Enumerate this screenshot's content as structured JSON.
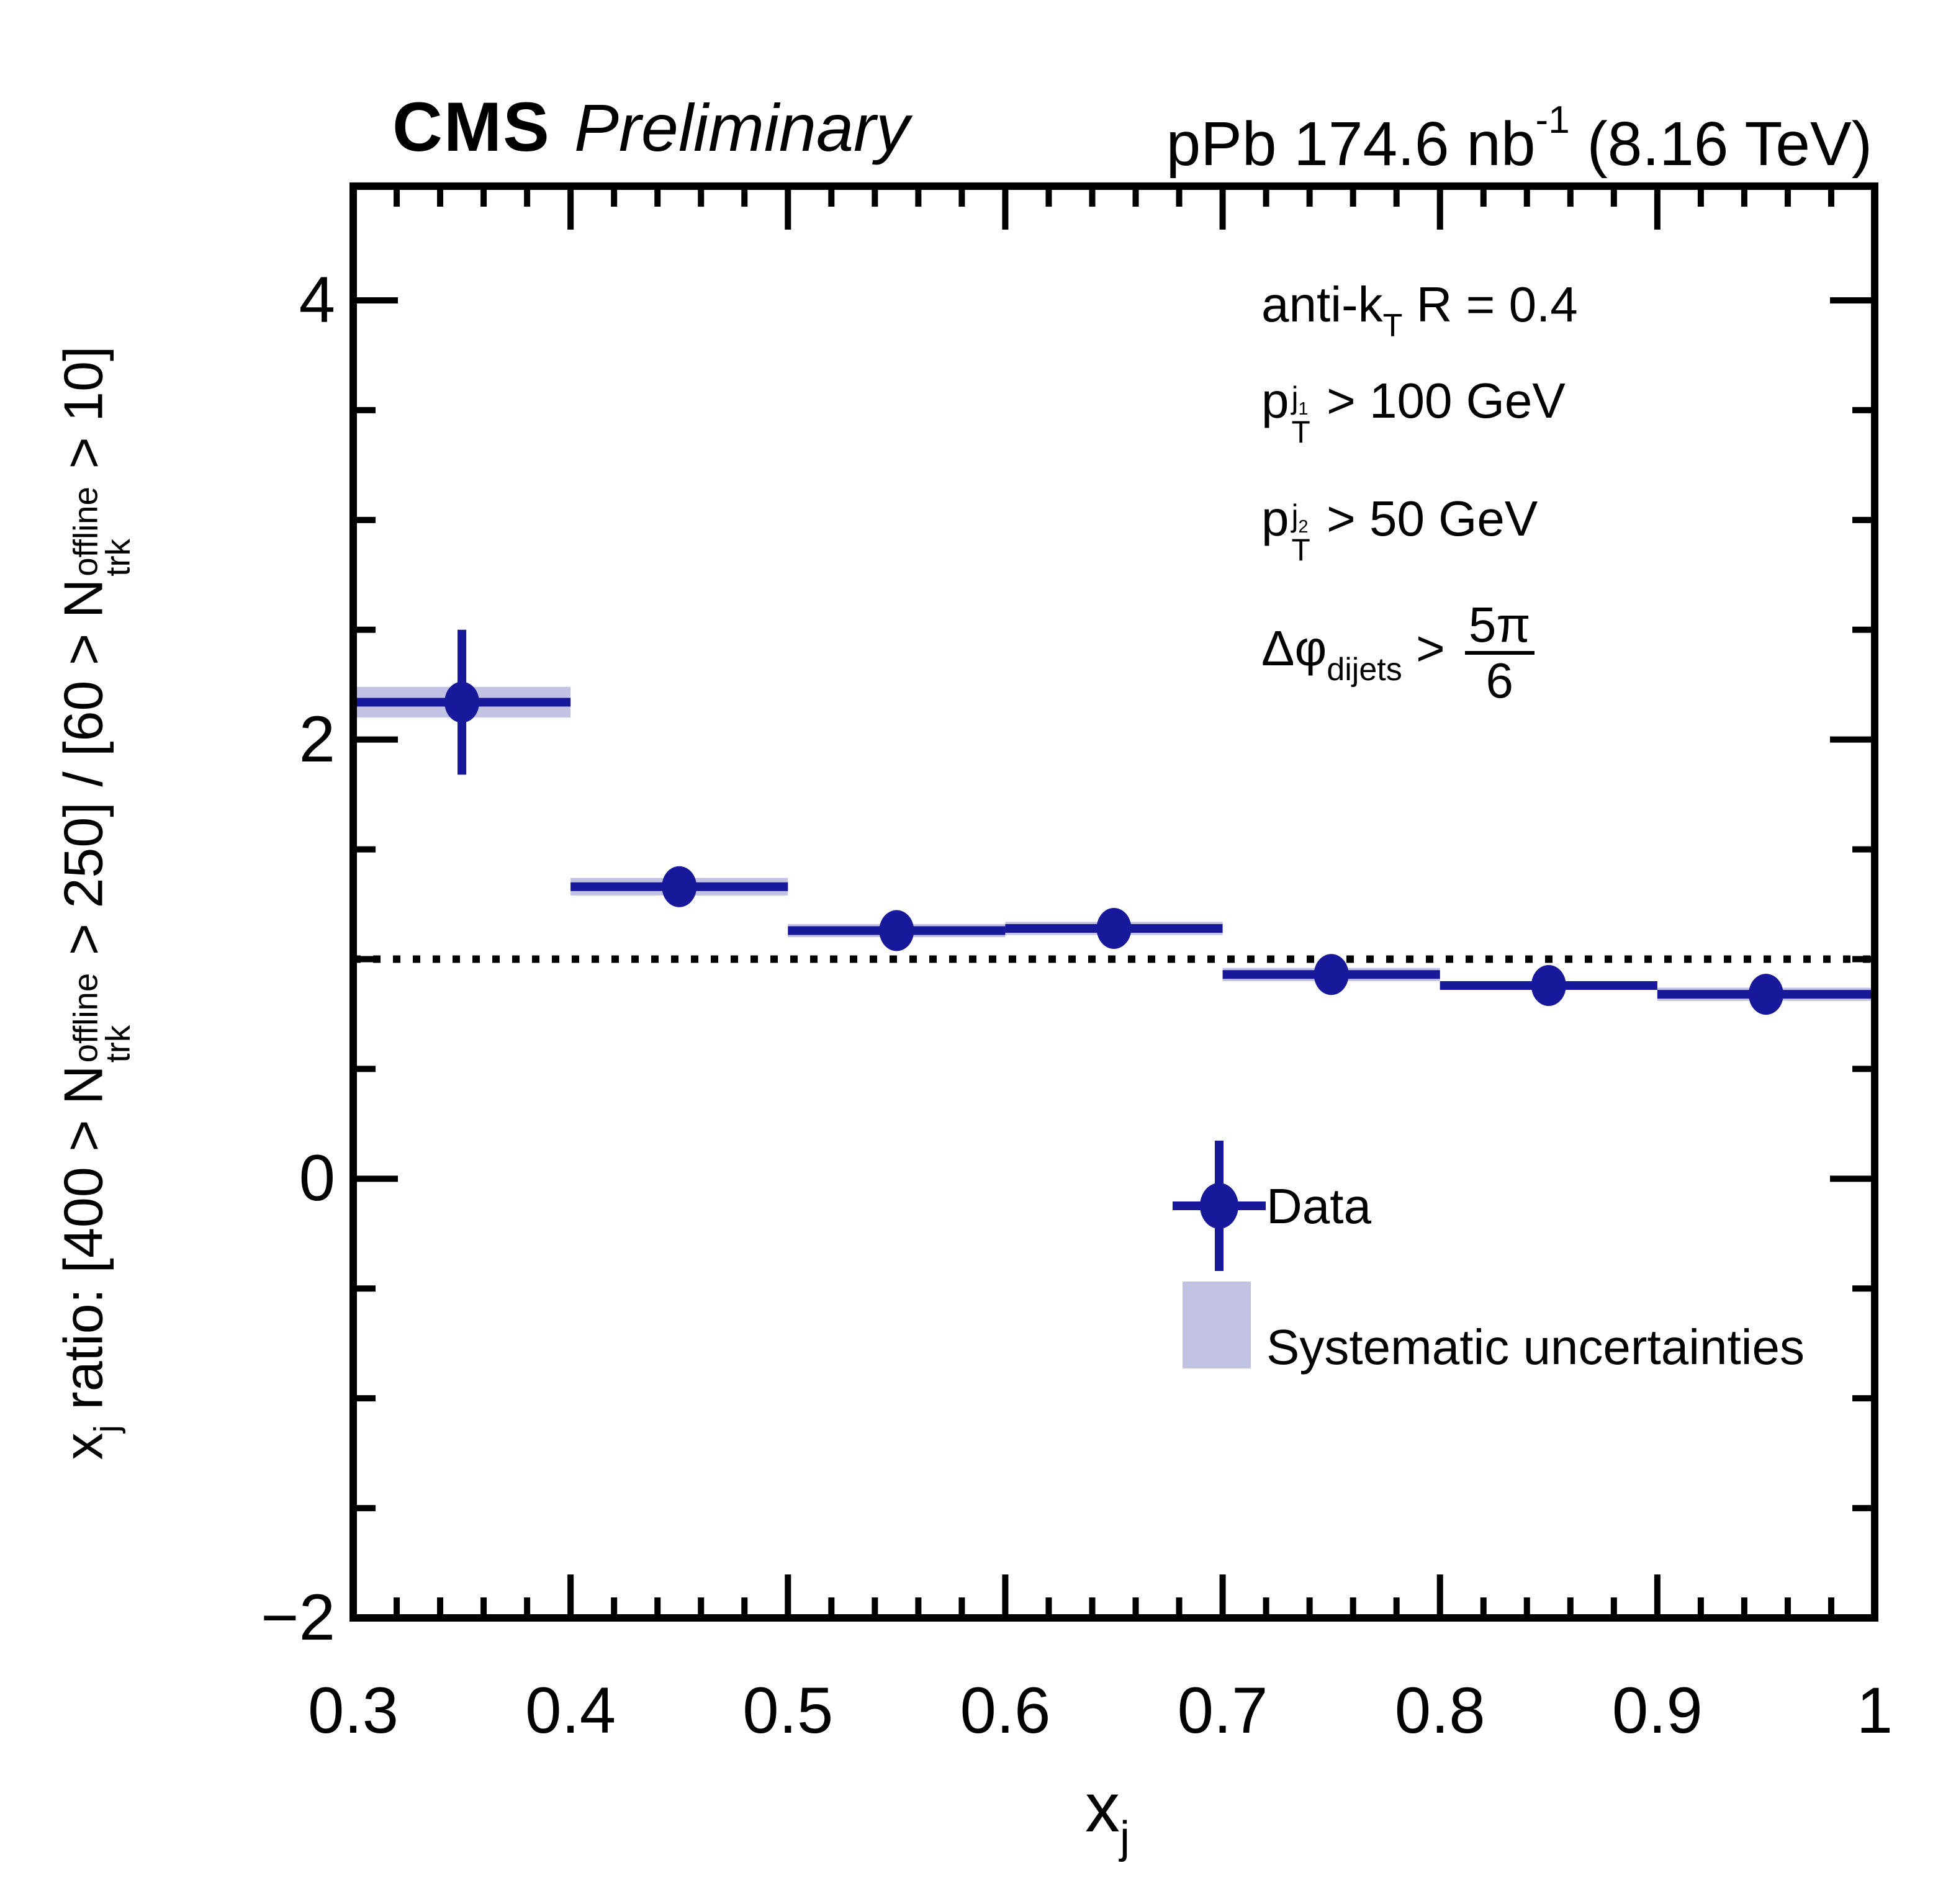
{
  "header": {
    "experiment": "CMS",
    "status": "Preliminary",
    "lumi_text": "pPb 174.6 nb",
    "lumi_sup": "-1",
    "energy_text": " (8.16 TeV)"
  },
  "annotations": {
    "jet_algo": {
      "pre": "anti-k",
      "sub": "T",
      "post": " R = 0.4"
    },
    "leading_jet": {
      "base": "p",
      "sup_main": "j",
      "sup_sub": "1",
      "sub": "T",
      "cond": " > 100 GeV"
    },
    "subleading_jet": {
      "base": "p",
      "sup_main": "j",
      "sup_sub": "2",
      "sub": "T",
      "cond": " > 50 GeV"
    },
    "dphi_cut": {
      "base": "Δφ",
      "sub": "dijets",
      "op": " > ",
      "frac_num": "5π",
      "frac_den": "6"
    }
  },
  "legend": {
    "data_label": "Data",
    "syst_label": "Systematic uncertainties"
  },
  "y_axis_title": {
    "p1": "x",
    "p1_sub": "j",
    "p2": " ratio: [400 > N",
    "n_sup": "offline",
    "n_sub": "trk",
    "p3": " > 250] / [60 > N",
    "p4": " > 10]"
  },
  "x_axis_title": {
    "main": "x",
    "sub": "j"
  },
  "colors": {
    "marker": "#18189a",
    "band": "#c2c2e4",
    "frame": "#000000",
    "background": "#ffffff"
  },
  "chart_data": {
    "type": "scatter",
    "title": "CMS Preliminary, pPb 174.6 nb^-1 (8.16 TeV)",
    "xlabel": "x_j",
    "ylabel": "x_j ratio: [400 > N_trk^offline > 250] / [60 > N_trk^offline > 10]",
    "xlim": [
      0.3,
      1.0
    ],
    "ylim": [
      -2,
      4.52
    ],
    "grid": false,
    "reference_line_y": 1.0,
    "x_major_ticks": [
      0.3,
      0.4,
      0.5,
      0.6,
      0.7,
      0.8,
      0.9,
      1.0
    ],
    "x_tick_labels": [
      "0.3",
      "0.4",
      "0.5",
      "0.6",
      "0.7",
      "0.8",
      "0.9",
      "1"
    ],
    "x_minor_step": 0.02,
    "y_major_ticks": [
      -2,
      0,
      2,
      4
    ],
    "y_tick_labels": [
      "−2",
      "0",
      "2",
      "4"
    ],
    "y_minor_step": 0.5,
    "series": [
      {
        "name": "Data",
        "points": [
          {
            "x": 0.35,
            "bin": [
              0.3,
              0.4
            ],
            "y": 2.17,
            "stat": 0.33,
            "sys": 0.07
          },
          {
            "x": 0.45,
            "bin": [
              0.4,
              0.5
            ],
            "y": 1.33,
            "stat": 0.08,
            "sys": 0.04
          },
          {
            "x": 0.55,
            "bin": [
              0.5,
              0.6
            ],
            "y": 1.13,
            "stat": 0.05,
            "sys": 0.03
          },
          {
            "x": 0.65,
            "bin": [
              0.6,
              0.7
            ],
            "y": 1.14,
            "stat": 0.05,
            "sys": 0.03
          },
          {
            "x": 0.75,
            "bin": [
              0.7,
              0.8
            ],
            "y": 0.93,
            "stat": 0.04,
            "sys": 0.03
          },
          {
            "x": 0.85,
            "bin": [
              0.8,
              0.9
            ],
            "y": 0.88,
            "stat": 0.04,
            "sys": 0.02
          },
          {
            "x": 0.95,
            "bin": [
              0.9,
              1.0
            ],
            "y": 0.84,
            "stat": 0.04,
            "sys": 0.03
          }
        ]
      }
    ]
  }
}
